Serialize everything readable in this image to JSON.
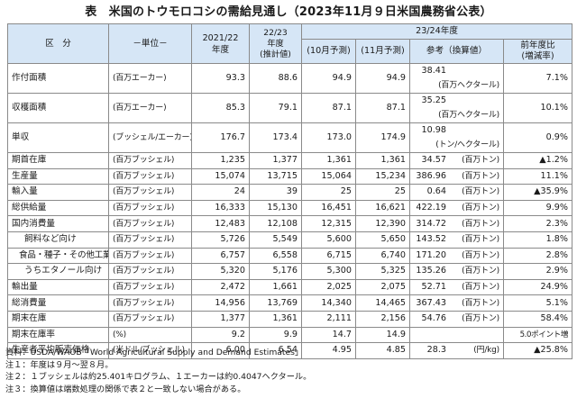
{
  "title": "表　米国のトウモロコシの需給見通し（2023年11月９日米国農務省公表）",
  "header": {
    "category": "区　分",
    "unit": "－単位－",
    "col2021": "2021/22\n年度",
    "col2022": "22/23\n年度\n(推計値)",
    "group2324": "23/24年度",
    "oct": "(10月予測)",
    "nov": "(11月予測)",
    "ref": "参考（換算値）",
    "change": "前年度比\n(増減率)"
  },
  "rows": [
    {
      "label": "作付面積",
      "indent": 0,
      "unit": "(百万エーカー)",
      "y2021": "93.3",
      "y2022": "88.6",
      "oct": "94.9",
      "nov": "94.9",
      "conv": "38.41",
      "conv_unit": "(百万ヘクタール)",
      "change": "7.1%"
    },
    {
      "label": "収穫面積",
      "indent": 0,
      "unit": "(百万エーカー)",
      "y2021": "85.3",
      "y2022": "79.1",
      "oct": "87.1",
      "nov": "87.1",
      "conv": "35.25",
      "conv_unit": "(百万ヘクタール)",
      "change": "10.1%"
    },
    {
      "label": "単収",
      "indent": 0,
      "unit": "(ブッシェル/エーカー)",
      "y2021": "176.7",
      "y2022": "173.4",
      "oct": "173.0",
      "nov": "174.9",
      "conv": "10.98",
      "conv_unit": "(トン/ヘクタール)",
      "change": "0.9%"
    },
    {
      "label": "期首在庫",
      "indent": 0,
      "unit": "(百万ブッシェル)",
      "y2021": "1,235",
      "y2022": "1,377",
      "oct": "1,361",
      "nov": "1,361",
      "conv": "34.57",
      "conv_unit": "(百万トン)",
      "change": "▲1.2%"
    },
    {
      "label": "生産量",
      "indent": 0,
      "unit": "(百万ブッシェル)",
      "y2021": "15,074",
      "y2022": "13,715",
      "oct": "15,064",
      "nov": "15,234",
      "conv": "386.96",
      "conv_unit": "(百万トン)",
      "change": "11.1%"
    },
    {
      "label": "輸入量",
      "indent": 0,
      "unit": "(百万ブッシェル)",
      "y2021": "24",
      "y2022": "39",
      "oct": "25",
      "nov": "25",
      "conv": "0.64",
      "conv_unit": "(百万トン)",
      "change": "▲35.9%"
    },
    {
      "label": "総供給量",
      "indent": 0,
      "unit": "(百万ブッシェル)",
      "y2021": "16,333",
      "y2022": "15,130",
      "oct": "16,451",
      "nov": "16,621",
      "conv": "422.19",
      "conv_unit": "(百万トン)",
      "change": "9.9%"
    },
    {
      "label": "国内消費量",
      "indent": 0,
      "unit": "(百万ブッシェル)",
      "y2021": "12,483",
      "y2022": "12,108",
      "oct": "12,315",
      "nov": "12,390",
      "conv": "314.72",
      "conv_unit": "(百万トン)",
      "change": "2.3%"
    },
    {
      "label": "飼料など向け",
      "indent": 1,
      "unit": "(百万ブッシェル)",
      "y2021": "5,726",
      "y2022": "5,549",
      "oct": "5,600",
      "nov": "5,650",
      "conv": "143.52",
      "conv_unit": "(百万トン)",
      "change": "1.8%"
    },
    {
      "label": "食品・種子・その他工業向け",
      "indent": 2,
      "unit": "(百万ブッシェル)",
      "y2021": "6,757",
      "y2022": "6,558",
      "oct": "6,715",
      "nov": "6,740",
      "conv": "171.20",
      "conv_unit": "(百万トン)",
      "change": "2.8%"
    },
    {
      "label": "うちエタノール向け",
      "indent": 1,
      "unit": "(百万ブッシェル)",
      "y2021": "5,320",
      "y2022": "5,176",
      "oct": "5,300",
      "nov": "5,325",
      "conv": "135.26",
      "conv_unit": "(百万トン)",
      "change": "2.9%"
    },
    {
      "label": "輸出量",
      "indent": 0,
      "unit": "(百万ブッシェル)",
      "y2021": "2,472",
      "y2022": "1,661",
      "oct": "2,025",
      "nov": "2,075",
      "conv": "52.71",
      "conv_unit": "(百万トン)",
      "change": "24.9%"
    },
    {
      "label": "総消費量",
      "indent": 0,
      "unit": "(百万ブッシェル)",
      "y2021": "14,956",
      "y2022": "13,769",
      "oct": "14,340",
      "nov": "14,465",
      "conv": "367.43",
      "conv_unit": "(百万トン)",
      "change": "5.1%"
    },
    {
      "label": "期末在庫",
      "indent": 0,
      "unit": "(百万ブッシェル)",
      "y2021": "1,377",
      "y2022": "1,361",
      "oct": "2,111",
      "nov": "2,156",
      "conv": "54.76",
      "conv_unit": "(百万トン)",
      "change": "58.4%"
    },
    {
      "label": "期末在庫率",
      "indent": 0,
      "unit": "(%)",
      "y2021": "9.2",
      "y2022": "9.9",
      "oct": "14.7",
      "nov": "14.9",
      "conv": "",
      "conv_unit": "",
      "change": "5.0ポイント増"
    },
    {
      "label": "生産者平均販売価格",
      "indent": 0,
      "unit": "(米ドル/ブッシェル)",
      "y2021": "6.00",
      "y2022": "6.54",
      "oct": "4.95",
      "nov": "4.85",
      "conv": "28.3",
      "conv_unit": "(円/kg)",
      "change": "▲25.8%"
    }
  ],
  "notes": [
    "資料：USDA/WAOB「World Agricultural Supply and Demand Estimates」",
    "注１：年度は９月～翌８月。",
    "注２：１ブッシェルは約25.401キログラム、１エーカーは約0.4047ヘクタール。",
    "注３：換算値は端数処理の関係で表２と一致しない場合がある。"
  ]
}
